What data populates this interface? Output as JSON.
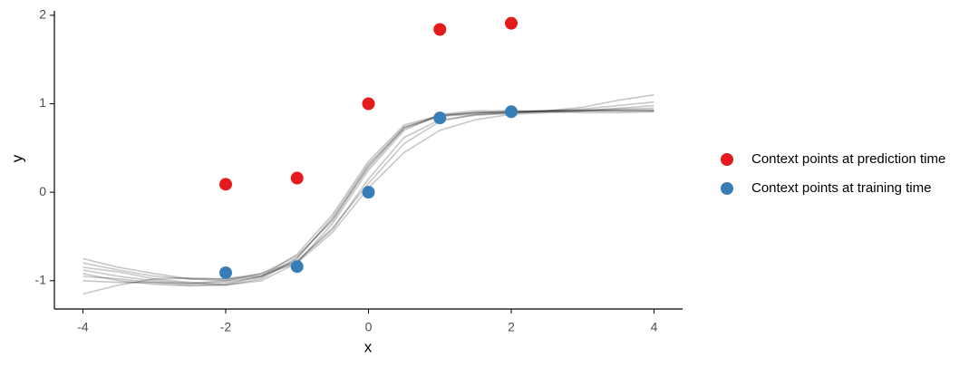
{
  "chart_data": {
    "type": "scatter",
    "x_label": "x",
    "y_label": "y",
    "xlim": [
      -4.4,
      4.4
    ],
    "ylim": [
      -1.32,
      2.05
    ],
    "xticks": [
      -4,
      -2,
      0,
      2,
      4
    ],
    "yticks": [
      -1,
      0,
      1,
      2
    ],
    "grid": false,
    "legend": "right",
    "x": [
      -2,
      -1,
      0,
      1,
      2
    ],
    "series": [
      {
        "name": "Context points at prediction time",
        "color": "#e41a1c",
        "values": [
          0.09,
          0.16,
          1.0,
          1.84,
          1.91
        ]
      },
      {
        "name": "Context points at training time",
        "color": "#377eb8",
        "values": [
          -0.91,
          -0.84,
          0,
          0.84,
          0.91
        ]
      }
    ],
    "sample_x": [
      -4,
      -3.5,
      -3,
      -2.5,
      -2,
      -1.5,
      -1,
      -0.5,
      0,
      0.5,
      1,
      1.5,
      2,
      2.5,
      3,
      3.5,
      4
    ],
    "sample_color": "#000000",
    "samples": [
      [
        -0.88,
        -0.95,
        -1.0,
        -1.03,
        -1.0,
        -0.92,
        -0.72,
        -0.32,
        0.3,
        0.72,
        0.86,
        0.9,
        0.91,
        0.92,
        0.92,
        0.93,
        0.93
      ],
      [
        -0.95,
        -0.98,
        -1.02,
        -1.05,
        -1.04,
        -0.95,
        -0.7,
        -0.25,
        0.35,
        0.76,
        0.87,
        0.9,
        0.91,
        0.91,
        0.92,
        0.92,
        0.92
      ],
      [
        -0.75,
        -0.85,
        -0.92,
        -0.98,
        -1.0,
        -0.95,
        -0.78,
        -0.4,
        0.1,
        0.55,
        0.8,
        0.88,
        0.9,
        0.92,
        0.94,
        0.98,
        1.02
      ],
      [
        -1.15,
        -1.05,
        -0.98,
        -0.97,
        -0.98,
        -0.94,
        -0.8,
        -0.45,
        0.05,
        0.45,
        0.7,
        0.82,
        0.88,
        0.9,
        0.92,
        0.95,
        0.98
      ],
      [
        -0.85,
        -0.9,
        -0.98,
        -1.02,
        -1.05,
        -1.0,
        -0.8,
        -0.35,
        0.25,
        0.7,
        0.88,
        0.92,
        0.92,
        0.92,
        0.93,
        0.94,
        0.95
      ],
      [
        -0.92,
        -1.0,
        -1.04,
        -1.06,
        -1.05,
        -0.98,
        -0.75,
        -0.28,
        0.32,
        0.74,
        0.86,
        0.88,
        0.9,
        0.91,
        0.9,
        0.9,
        0.91
      ],
      [
        -0.8,
        -0.88,
        -0.95,
        -0.98,
        -0.98,
        -0.92,
        -0.78,
        -0.42,
        0.15,
        0.62,
        0.82,
        0.87,
        0.89,
        0.92,
        0.96,
        1.04,
        1.1
      ],
      [
        -1.0,
        -1.02,
        -1.02,
        -1.03,
        -1.02,
        -0.96,
        -0.74,
        -0.3,
        0.28,
        0.73,
        0.87,
        0.9,
        0.91,
        0.92,
        0.92,
        0.92,
        0.92
      ]
    ]
  }
}
